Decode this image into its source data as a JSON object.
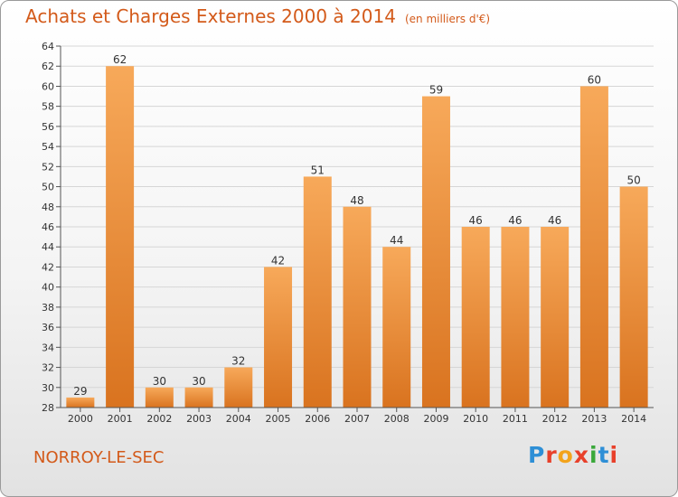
{
  "title": "Achats et Charges Externes 2000 à 2014",
  "unit": "(en milliers d'€)",
  "place": "NORROY-LE-SEC",
  "logo": {
    "letters": [
      "P",
      "r",
      "o",
      "x",
      "i",
      "t",
      "i"
    ],
    "colors": [
      "#2e8fd6",
      "#e8402a",
      "#f3a31b",
      "#e8402a",
      "#3aa83a",
      "#2e8fd6",
      "#e8402a"
    ]
  },
  "colors": {
    "bar_light": "#f7a95a",
    "bar_dark": "#d9731f",
    "text": "#d35a1a",
    "grid": "#d6d6d6"
  },
  "chart_data": {
    "type": "bar",
    "title": "Achats et Charges Externes 2000 à 2014",
    "categories": [
      "2000",
      "2001",
      "2002",
      "2003",
      "2004",
      "2005",
      "2006",
      "2007",
      "2008",
      "2009",
      "2010",
      "2011",
      "2012",
      "2013",
      "2014"
    ],
    "values": [
      29,
      62,
      30,
      30,
      32,
      42,
      51,
      48,
      44,
      59,
      46,
      46,
      46,
      60,
      50
    ],
    "ylim": [
      28,
      64
    ],
    "yticks": [
      28,
      30,
      32,
      34,
      36,
      38,
      40,
      42,
      44,
      46,
      48,
      50,
      52,
      54,
      56,
      58,
      60,
      62,
      64
    ],
    "grid": true
  }
}
